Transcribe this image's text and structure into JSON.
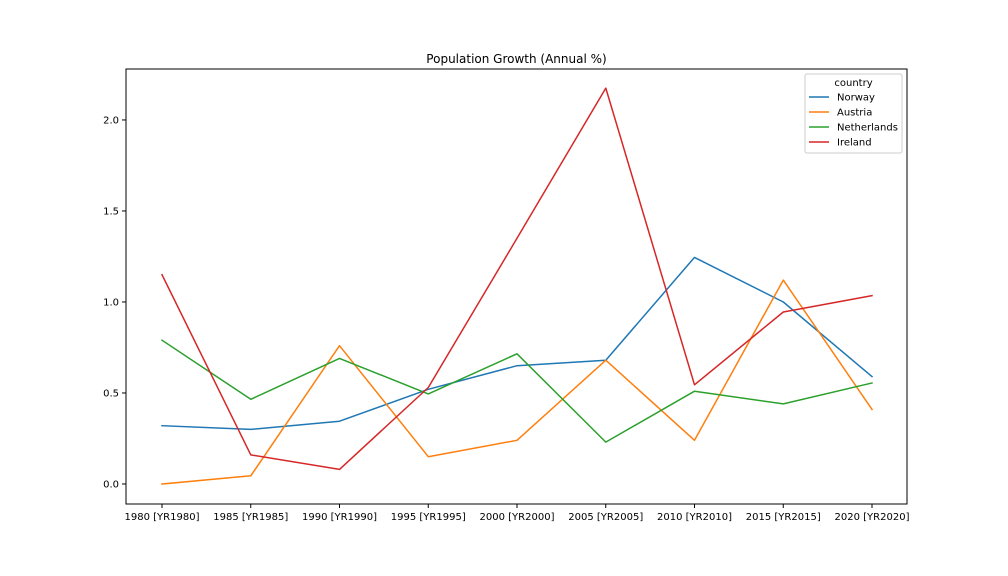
{
  "chart_data": {
    "type": "line",
    "title": "Population Growth (Annual %)",
    "xlabel": "",
    "ylabel": "",
    "categories": [
      "1980 [YR1980]",
      "1985 [YR1985]",
      "1990 [YR1990]",
      "1995 [YR1995]",
      "2000 [YR2000]",
      "2005 [YR2005]",
      "2010 [YR2010]",
      "2015 [YR2015]",
      "2020 [YR2020]"
    ],
    "yticks": [
      "0.0",
      "0.5",
      "1.0",
      "1.5",
      "2.0"
    ],
    "ylim": [
      -0.11,
      2.28
    ],
    "grid": false,
    "legend": {
      "title": "country",
      "placement": "top-right"
    },
    "series": [
      {
        "name": "Norway",
        "color": "#1f77b4",
        "values": [
          0.32,
          0.3,
          0.345,
          0.52,
          0.65,
          0.68,
          1.245,
          1.0,
          0.59
        ]
      },
      {
        "name": "Austria",
        "color": "#ff7f0e",
        "values": [
          0.0,
          0.045,
          0.76,
          0.15,
          0.24,
          0.68,
          0.24,
          1.12,
          0.41
        ]
      },
      {
        "name": "Netherlands",
        "color": "#2ca02c",
        "values": [
          0.79,
          0.465,
          0.69,
          0.495,
          0.715,
          0.23,
          0.51,
          0.44,
          0.555
        ]
      },
      {
        "name": "Ireland",
        "color": "#d62728",
        "values": [
          1.15,
          0.16,
          0.08,
          0.53,
          1.35,
          2.175,
          0.545,
          0.945,
          1.035
        ]
      }
    ]
  }
}
